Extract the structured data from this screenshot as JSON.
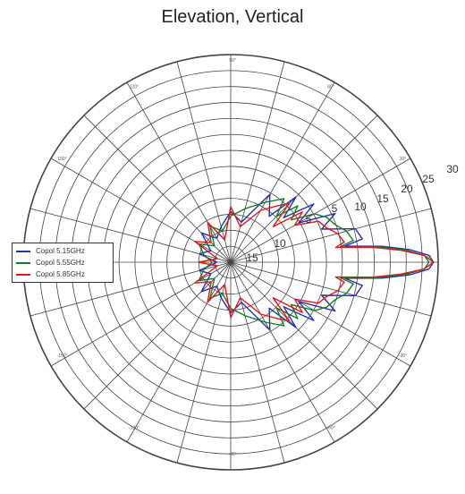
{
  "chart_data": {
    "type": "polar-line",
    "title": "Elevation, Vertical",
    "angle_tick_labels": [
      "0°",
      "30°",
      "60°",
      "90°",
      "120°",
      "150°",
      "180°",
      "-150°",
      "-120°",
      "-90°",
      "-60°",
      "-30°"
    ],
    "radial_tick_labels": [
      "15",
      "10",
      "5",
      "5",
      "10",
      "15",
      "20",
      "25",
      "30"
    ],
    "radial_range": [
      -15,
      30
    ],
    "grid": true,
    "legend_position": "left",
    "series": [
      {
        "name": "Copol 5.15GHz",
        "color": "#2233aa",
        "points": [
          [
            -180,
            -12
          ],
          [
            -165,
            -8
          ],
          [
            -150,
            -10
          ],
          [
            -135,
            -6
          ],
          [
            -120,
            -9
          ],
          [
            -105,
            -7
          ],
          [
            -90,
            -4
          ],
          [
            -75,
            -6
          ],
          [
            -60,
            2
          ],
          [
            -50,
            -2
          ],
          [
            -45,
            5
          ],
          [
            -40,
            0
          ],
          [
            -35,
            7
          ],
          [
            -30,
            2
          ],
          [
            -25,
            10
          ],
          [
            -20,
            6
          ],
          [
            -15,
            13
          ],
          [
            -10,
            14
          ],
          [
            -8,
            10
          ],
          [
            -6,
            18
          ],
          [
            -4,
            24
          ],
          [
            -2,
            28
          ],
          [
            0,
            29
          ],
          [
            2,
            28
          ],
          [
            4,
            24
          ],
          [
            6,
            18
          ],
          [
            8,
            10
          ],
          [
            10,
            14
          ],
          [
            15,
            13
          ],
          [
            20,
            6
          ],
          [
            25,
            10
          ],
          [
            30,
            2
          ],
          [
            35,
            7
          ],
          [
            40,
            0
          ],
          [
            45,
            5
          ],
          [
            50,
            -2
          ],
          [
            60,
            2
          ],
          [
            75,
            -6
          ],
          [
            90,
            -4
          ],
          [
            105,
            -7
          ],
          [
            120,
            -9
          ],
          [
            135,
            -6
          ],
          [
            150,
            -10
          ],
          [
            165,
            -8
          ],
          [
            180,
            -12
          ]
        ]
      },
      {
        "name": "Copol 5.55GHz",
        "color": "#1a7a2a",
        "points": [
          [
            -180,
            -11
          ],
          [
            -165,
            -9
          ],
          [
            -150,
            -7
          ],
          [
            -135,
            -10
          ],
          [
            -120,
            -6
          ],
          [
            -105,
            -8
          ],
          [
            -90,
            -5
          ],
          [
            -75,
            -3
          ],
          [
            -60,
            0
          ],
          [
            -50,
            3
          ],
          [
            -45,
            -1
          ],
          [
            -40,
            4
          ],
          [
            -35,
            1
          ],
          [
            -30,
            6
          ],
          [
            -25,
            8
          ],
          [
            -20,
            9
          ],
          [
            -15,
            11
          ],
          [
            -10,
            12
          ],
          [
            -8,
            9
          ],
          [
            -6,
            17
          ],
          [
            -4,
            23
          ],
          [
            -2,
            27
          ],
          [
            0,
            28
          ],
          [
            2,
            27
          ],
          [
            4,
            23
          ],
          [
            6,
            17
          ],
          [
            8,
            9
          ],
          [
            10,
            12
          ],
          [
            15,
            11
          ],
          [
            20,
            9
          ],
          [
            25,
            8
          ],
          [
            30,
            6
          ],
          [
            35,
            1
          ],
          [
            40,
            4
          ],
          [
            45,
            -1
          ],
          [
            50,
            3
          ],
          [
            60,
            0
          ],
          [
            75,
            -3
          ],
          [
            90,
            -5
          ],
          [
            105,
            -8
          ],
          [
            120,
            -6
          ],
          [
            135,
            -10
          ],
          [
            150,
            -7
          ],
          [
            165,
            -9
          ],
          [
            180,
            -11
          ]
        ]
      },
      {
        "name": "Copol 5.85GHz",
        "color": "#e01818",
        "points": [
          [
            -180,
            -8
          ],
          [
            -165,
            -12
          ],
          [
            -150,
            -6
          ],
          [
            -135,
            -9
          ],
          [
            -120,
            -5
          ],
          [
            -105,
            -10
          ],
          [
            -90,
            -3
          ],
          [
            -75,
            -7
          ],
          [
            -60,
            -2
          ],
          [
            -50,
            1
          ],
          [
            -45,
            3
          ],
          [
            -40,
            -3
          ],
          [
            -35,
            4
          ],
          [
            -30,
            1
          ],
          [
            -25,
            6
          ],
          [
            -20,
            7
          ],
          [
            -15,
            9
          ],
          [
            -10,
            10
          ],
          [
            -8,
            8
          ],
          [
            -6,
            16
          ],
          [
            -4,
            22
          ],
          [
            -2,
            27
          ],
          [
            0,
            29
          ],
          [
            2,
            27
          ],
          [
            4,
            22
          ],
          [
            6,
            16
          ],
          [
            8,
            8
          ],
          [
            10,
            10
          ],
          [
            15,
            9
          ],
          [
            20,
            7
          ],
          [
            25,
            6
          ],
          [
            30,
            1
          ],
          [
            35,
            4
          ],
          [
            40,
            -3
          ],
          [
            45,
            3
          ],
          [
            50,
            1
          ],
          [
            60,
            -2
          ],
          [
            75,
            -7
          ],
          [
            90,
            -3
          ],
          [
            105,
            -10
          ],
          [
            120,
            -5
          ],
          [
            135,
            -9
          ],
          [
            150,
            -6
          ],
          [
            165,
            -12
          ],
          [
            180,
            -8
          ]
        ]
      }
    ]
  }
}
